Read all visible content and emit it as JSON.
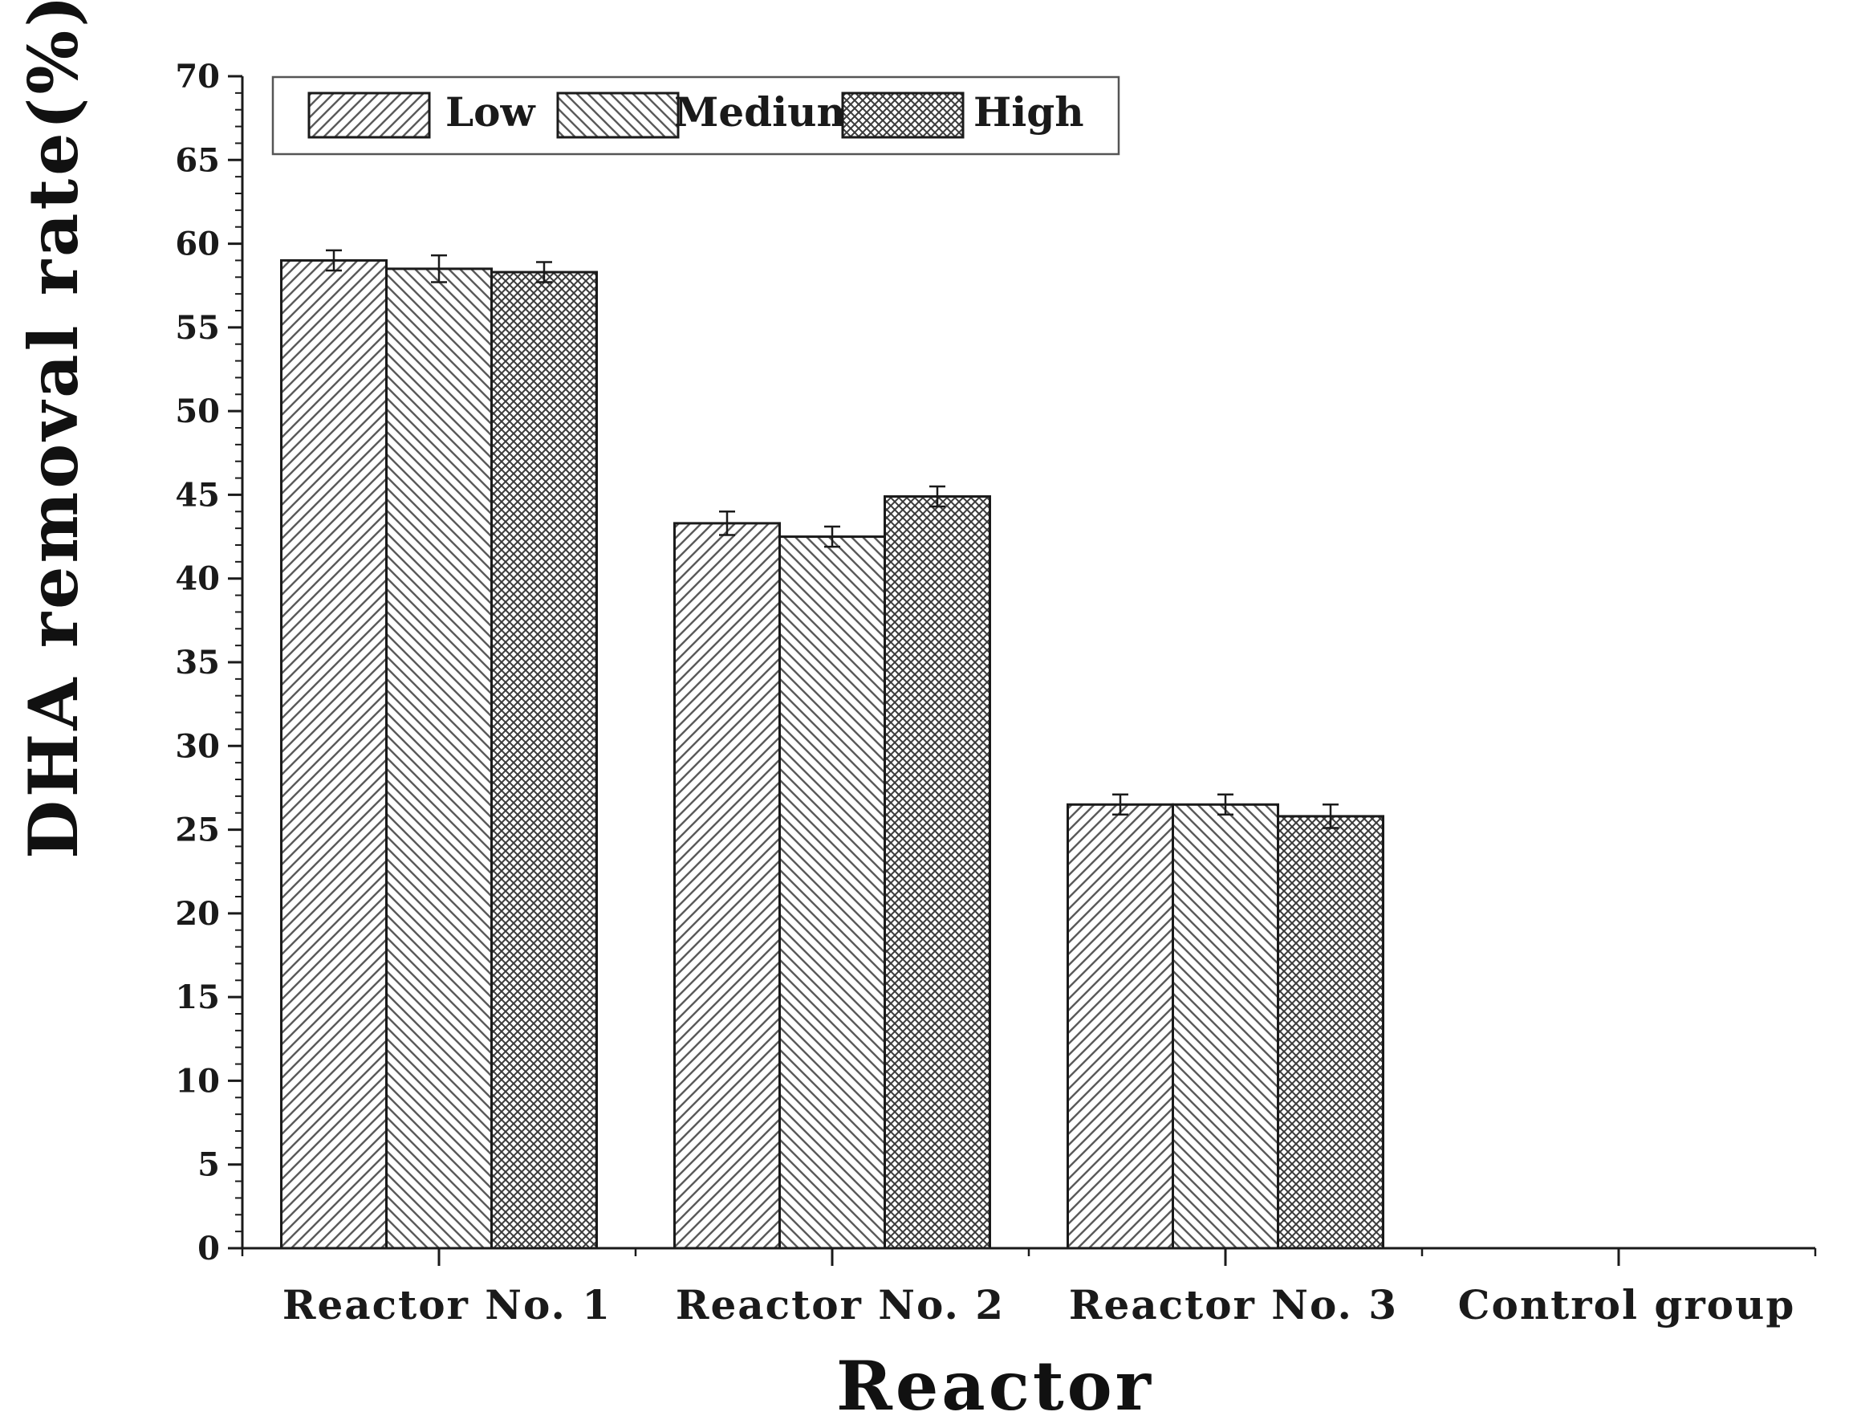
{
  "chart_data": {
    "type": "bar",
    "title": "",
    "xlabel": "Reactor",
    "ylabel": "DHA removal rate(%)",
    "ylim": [
      0,
      70
    ],
    "yticks": [
      0,
      5,
      10,
      15,
      20,
      25,
      30,
      35,
      40,
      45,
      50,
      55,
      60,
      65,
      70
    ],
    "categories": [
      "Reactor No. 1",
      "Reactor No. 2",
      "Reactor No. 3",
      "Control group"
    ],
    "series": [
      {
        "name": "Low",
        "pattern": "diagonal-up",
        "values": [
          59.0,
          43.3,
          26.5,
          0
        ],
        "errors": [
          0.6,
          0.7,
          0.6,
          0
        ]
      },
      {
        "name": "Medium",
        "pattern": "diagonal-down",
        "values": [
          58.5,
          42.5,
          26.5,
          0
        ],
        "errors": [
          0.8,
          0.6,
          0.6,
          0
        ]
      },
      {
        "name": "High",
        "pattern": "crosshatch",
        "values": [
          58.3,
          44.9,
          25.8,
          0
        ],
        "errors": [
          0.6,
          0.6,
          0.7,
          0
        ]
      }
    ],
    "legend_position": "top-left",
    "grid": false,
    "bar_fill": "#ffffff",
    "bar_stroke": "#1a1a1a",
    "hatch_color": "#5a5a5a"
  }
}
